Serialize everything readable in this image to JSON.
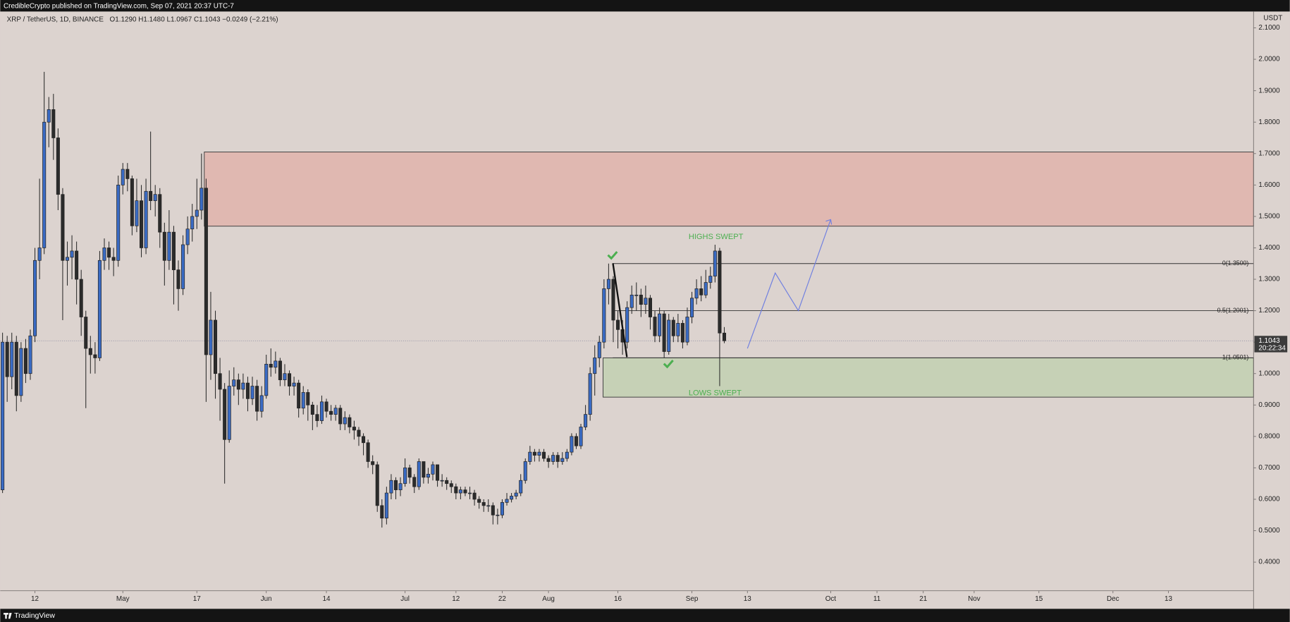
{
  "publisher": "CredibleCrypto published on TradingView.com, Sep 07, 2021 20:37 UTC-7",
  "brand": "TradingView",
  "chart_data": {
    "type": "candlestick",
    "title": "XRP / TetherUS, 1D, BINANCE",
    "ohlc_header": "O1.1290  H1.1480  L1.0967  C1.1043  −0.0249 (−2.21%)",
    "currency": "USDT",
    "up_color": "#3a6bc4",
    "down_color": "#2b2b2b",
    "x": [
      95,
      96,
      97,
      98,
      99,
      100,
      101,
      102,
      103,
      104,
      105,
      106,
      107,
      108,
      109,
      110,
      111,
      112,
      113,
      114,
      115,
      116,
      117,
      118,
      119,
      120,
      121,
      122,
      123,
      124,
      125,
      126,
      127,
      128,
      129,
      130,
      131,
      132,
      133,
      134,
      135,
      136,
      137,
      138,
      139,
      140,
      141,
      142,
      143,
      144,
      145,
      146,
      147,
      148,
      149,
      150,
      151,
      152,
      153,
      154,
      155,
      156,
      157,
      158,
      159,
      160,
      161,
      162,
      163,
      164,
      165,
      166,
      167,
      168,
      169,
      170,
      171,
      172,
      173,
      174,
      175,
      176,
      177,
      178,
      179,
      180,
      181,
      182,
      183,
      184,
      185,
      186,
      187,
      188,
      189,
      190,
      191,
      192,
      193,
      194,
      195,
      196,
      197,
      198,
      199,
      200,
      201,
      202,
      203,
      204,
      205,
      206,
      207,
      208,
      209,
      210,
      211,
      212,
      213,
      214,
      215,
      216,
      217,
      218,
      219,
      220,
      221,
      222,
      223,
      224,
      225,
      226,
      227,
      228,
      229,
      230,
      231,
      232,
      233,
      234,
      235,
      236,
      237,
      238,
      239,
      240,
      241,
      242,
      243,
      244,
      245,
      246,
      247,
      248,
      249,
      250,
      251
    ],
    "open": [
      0.63,
      1.1,
      0.99,
      1.1,
      0.93,
      1.08,
      1.0,
      1.12,
      1.36,
      1.4,
      1.8,
      1.84,
      1.75,
      1.57,
      1.36,
      1.37,
      1.39,
      1.3,
      1.18,
      1.08,
      1.06,
      1.05,
      1.36,
      1.4,
      1.37,
      1.36,
      1.6,
      1.65,
      1.62,
      1.47,
      1.55,
      1.4,
      1.58,
      1.55,
      1.57,
      1.45,
      1.36,
      1.45,
      1.33,
      1.27,
      1.41,
      1.46,
      1.5,
      1.52,
      1.59,
      1.06,
      1.17,
      1.0,
      0.95,
      0.79,
      0.96,
      0.98,
      0.95,
      0.97,
      0.92,
      0.96,
      0.88,
      0.93,
      1.03,
      1.02,
      1.04,
      0.98,
      1.0,
      0.96,
      0.97,
      0.89,
      0.94,
      0.9,
      0.87,
      0.85,
      0.91,
      0.88,
      0.87,
      0.89,
      0.84,
      0.86,
      0.83,
      0.82,
      0.8,
      0.78,
      0.72,
      0.71,
      0.58,
      0.54,
      0.62,
      0.66,
      0.63,
      0.65,
      0.7,
      0.67,
      0.64,
      0.72,
      0.67,
      0.68,
      0.71,
      0.66,
      0.66,
      0.65,
      0.64,
      0.62,
      0.63,
      0.62,
      0.62,
      0.6,
      0.59,
      0.58,
      0.58,
      0.55,
      0.55,
      0.59,
      0.6,
      0.61,
      0.62,
      0.66,
      0.72,
      0.75,
      0.74,
      0.75,
      0.73,
      0.72,
      0.74,
      0.72,
      0.73,
      0.75,
      0.8,
      0.77,
      0.83,
      0.87,
      1.0,
      1.05,
      1.1,
      1.27,
      1.3,
      1.17,
      1.14,
      1.1,
      1.21,
      1.25,
      1.25,
      1.22,
      1.24,
      1.18,
      1.12,
      1.19,
      1.07,
      1.17,
      1.12,
      1.16,
      1.1,
      1.18,
      1.24,
      1.27,
      1.25,
      1.29,
      1.31,
      1.39,
      1.129
    ],
    "high": [
      1.13,
      1.12,
      1.13,
      1.12,
      1.1,
      1.11,
      1.14,
      1.4,
      1.62,
      1.96,
      1.88,
      1.89,
      1.78,
      1.59,
      1.42,
      1.44,
      1.42,
      1.33,
      1.2,
      1.12,
      1.1,
      1.39,
      1.43,
      1.42,
      1.4,
      1.63,
      1.67,
      1.67,
      1.63,
      1.62,
      1.6,
      1.62,
      1.77,
      1.6,
      1.59,
      1.48,
      1.52,
      1.47,
      1.36,
      1.44,
      1.5,
      1.54,
      1.62,
      1.7,
      1.62,
      1.26,
      1.2,
      1.05,
      0.97,
      1.01,
      1.02,
      1.0,
      1.0,
      0.99,
      0.99,
      0.98,
      0.96,
      1.06,
      1.08,
      1.07,
      1.05,
      1.03,
      1.01,
      0.99,
      0.98,
      0.96,
      0.95,
      0.91,
      0.9,
      0.93,
      0.92,
      0.9,
      0.9,
      0.9,
      0.88,
      0.87,
      0.85,
      0.83,
      0.81,
      0.79,
      0.74,
      0.72,
      0.6,
      0.64,
      0.68,
      0.67,
      0.67,
      0.73,
      0.71,
      0.68,
      0.73,
      0.72,
      0.7,
      0.72,
      0.71,
      0.68,
      0.67,
      0.66,
      0.65,
      0.64,
      0.64,
      0.64,
      0.63,
      0.61,
      0.6,
      0.6,
      0.59,
      0.57,
      0.6,
      0.62,
      0.62,
      0.63,
      0.68,
      0.73,
      0.77,
      0.76,
      0.76,
      0.76,
      0.74,
      0.75,
      0.75,
      0.75,
      0.76,
      0.81,
      0.81,
      0.84,
      0.9,
      1.02,
      1.09,
      1.12,
      1.3,
      1.35,
      1.31,
      1.2,
      1.17,
      1.23,
      1.28,
      1.29,
      1.27,
      1.28,
      1.25,
      1.2,
      1.21,
      1.2,
      1.19,
      1.18,
      1.19,
      1.17,
      1.21,
      1.26,
      1.3,
      1.31,
      1.33,
      1.34,
      1.41,
      1.4,
      1.148
    ],
    "low": [
      0.62,
      0.91,
      0.95,
      0.88,
      0.91,
      0.97,
      0.98,
      1.1,
      1.3,
      1.38,
      1.72,
      1.68,
      1.52,
      1.17,
      1.28,
      1.3,
      1.22,
      1.12,
      0.89,
      1.0,
      1.0,
      1.04,
      1.33,
      1.33,
      1.31,
      1.34,
      1.57,
      1.58,
      1.44,
      1.45,
      1.37,
      1.38,
      1.52,
      1.5,
      1.4,
      1.28,
      1.33,
      1.22,
      1.2,
      1.25,
      1.38,
      1.42,
      1.46,
      1.49,
      0.91,
      0.98,
      0.92,
      0.85,
      0.65,
      0.78,
      0.93,
      0.9,
      0.92,
      0.88,
      0.9,
      0.85,
      0.86,
      0.92,
      0.99,
      1.0,
      0.96,
      0.96,
      0.93,
      0.93,
      0.86,
      0.87,
      0.85,
      0.82,
      0.83,
      0.84,
      0.86,
      0.85,
      0.85,
      0.82,
      0.82,
      0.81,
      0.79,
      0.77,
      0.74,
      0.7,
      0.68,
      0.56,
      0.51,
      0.52,
      0.6,
      0.6,
      0.61,
      0.64,
      0.65,
      0.62,
      0.63,
      0.65,
      0.65,
      0.66,
      0.64,
      0.64,
      0.63,
      0.62,
      0.6,
      0.6,
      0.61,
      0.6,
      0.58,
      0.57,
      0.56,
      0.56,
      0.52,
      0.52,
      0.54,
      0.58,
      0.59,
      0.6,
      0.61,
      0.65,
      0.71,
      0.72,
      0.72,
      0.72,
      0.7,
      0.71,
      0.7,
      0.71,
      0.72,
      0.74,
      0.76,
      0.76,
      0.82,
      0.85,
      0.93,
      1.02,
      1.08,
      1.22,
      1.1,
      1.08,
      1.06,
      1.08,
      1.19,
      1.2,
      1.18,
      1.19,
      1.14,
      1.1,
      1.1,
      1.05,
      1.06,
      1.1,
      1.1,
      1.08,
      1.09,
      1.16,
      1.22,
      1.23,
      1.24,
      1.27,
      1.29,
      0.96,
      1.0967
    ],
    "close": [
      1.1,
      0.99,
      1.1,
      0.93,
      1.08,
      1.0,
      1.12,
      1.36,
      1.4,
      1.8,
      1.84,
      1.75,
      1.57,
      1.36,
      1.37,
      1.39,
      1.3,
      1.18,
      1.08,
      1.06,
      1.05,
      1.36,
      1.4,
      1.37,
      1.36,
      1.6,
      1.65,
      1.62,
      1.47,
      1.55,
      1.4,
      1.58,
      1.55,
      1.57,
      1.45,
      1.36,
      1.45,
      1.33,
      1.27,
      1.41,
      1.46,
      1.5,
      1.52,
      1.59,
      1.06,
      1.17,
      1.0,
      0.95,
      0.79,
      0.96,
      0.98,
      0.95,
      0.97,
      0.92,
      0.96,
      0.88,
      0.93,
      1.03,
      1.02,
      1.04,
      0.98,
      1.0,
      0.96,
      0.97,
      0.89,
      0.94,
      0.9,
      0.87,
      0.85,
      0.91,
      0.88,
      0.87,
      0.89,
      0.84,
      0.86,
      0.83,
      0.82,
      0.8,
      0.78,
      0.72,
      0.71,
      0.58,
      0.54,
      0.62,
      0.66,
      0.63,
      0.65,
      0.7,
      0.67,
      0.64,
      0.72,
      0.67,
      0.68,
      0.71,
      0.66,
      0.66,
      0.65,
      0.64,
      0.62,
      0.63,
      0.62,
      0.62,
      0.6,
      0.59,
      0.58,
      0.58,
      0.55,
      0.55,
      0.59,
      0.6,
      0.61,
      0.62,
      0.66,
      0.72,
      0.75,
      0.74,
      0.75,
      0.73,
      0.72,
      0.74,
      0.72,
      0.73,
      0.75,
      0.8,
      0.77,
      0.83,
      0.87,
      1.0,
      1.05,
      1.1,
      1.27,
      1.3,
      1.17,
      1.14,
      1.1,
      1.21,
      1.25,
      1.25,
      1.22,
      1.24,
      1.18,
      1.12,
      1.19,
      1.07,
      1.17,
      1.12,
      1.16,
      1.1,
      1.18,
      1.24,
      1.27,
      1.25,
      1.29,
      1.31,
      1.39,
      1.129,
      1.1043
    ],
    "xlim": [
      94.5,
      365.4
    ],
    "xticks": [
      {
        "value": 102,
        "label": "12"
      },
      {
        "value": 121,
        "label": "May"
      },
      {
        "value": 137,
        "label": "17"
      },
      {
        "value": 152,
        "label": "Jun"
      },
      {
        "value": 165,
        "label": "14"
      },
      {
        "value": 182,
        "label": "Jul"
      },
      {
        "value": 193,
        "label": "12"
      },
      {
        "value": 203,
        "label": "22"
      },
      {
        "value": 213,
        "label": "Aug"
      },
      {
        "value": 228,
        "label": "16"
      },
      {
        "value": 244,
        "label": "Sep"
      },
      {
        "value": 256,
        "label": "13"
      },
      {
        "value": 274,
        "label": "Oct"
      },
      {
        "value": 284,
        "label": "11"
      },
      {
        "value": 294,
        "label": "21"
      },
      {
        "value": 305,
        "label": "Nov"
      },
      {
        "value": 319,
        "label": "15"
      },
      {
        "value": 335,
        "label": "Dec"
      },
      {
        "value": 347,
        "label": "13"
      }
    ],
    "ylim": [
      0.309,
      2.152
    ],
    "yticks": [
      {
        "value": 2.1,
        "label": "2.1000"
      },
      {
        "value": 2.0,
        "label": "2.0000"
      },
      {
        "value": 1.9,
        "label": "1.9000"
      },
      {
        "value": 1.8,
        "label": "1.8000"
      },
      {
        "value": 1.7,
        "label": "1.7000"
      },
      {
        "value": 1.6,
        "label": "1.6000"
      },
      {
        "value": 1.5,
        "label": "1.5000"
      },
      {
        "value": 1.4,
        "label": "1.4000"
      },
      {
        "value": 1.3,
        "label": "1.3000"
      },
      {
        "value": 1.2,
        "label": "1.2000"
      },
      {
        "value": 1.1,
        "label": "1.1000"
      },
      {
        "value": 1.0,
        "label": "1.0000"
      },
      {
        "value": 0.9,
        "label": "0.9000"
      },
      {
        "value": 0.8,
        "label": "0.8000"
      },
      {
        "value": 0.7,
        "label": "0.7000"
      },
      {
        "value": 0.6,
        "label": "0.6000"
      },
      {
        "value": 0.5,
        "label": "0.5000"
      },
      {
        "value": 0.4,
        "label": "0.4000"
      }
    ],
    "last_price": {
      "value": 1.1043,
      "label": "1.1043"
    },
    "countdown": "20:22:34",
    "zones": [
      {
        "start": 138.6,
        "top": 1.705,
        "bottom": 1.469,
        "color": "#e0b8b1"
      },
      {
        "start": 224.8,
        "top": 1.05,
        "bottom": 0.925,
        "color": "#c6d1b6"
      }
    ],
    "fib_start": 226.9,
    "fib_levels": [
      {
        "value": 1.35,
        "label": "0(1.3500)"
      },
      {
        "value": 1.2001,
        "label": "0.5(1.2001)"
      },
      {
        "value": 1.0501,
        "label": "1(1.0501)"
      }
    ],
    "projection": {
      "color": "#6f7fe0",
      "x": [
        256,
        262,
        267,
        274
      ],
      "y": [
        1.08,
        1.32,
        1.2,
        1.49
      ]
    },
    "annotations": [
      "HIGHS SWEPT",
      "LOWS SWEPT"
    ]
  }
}
